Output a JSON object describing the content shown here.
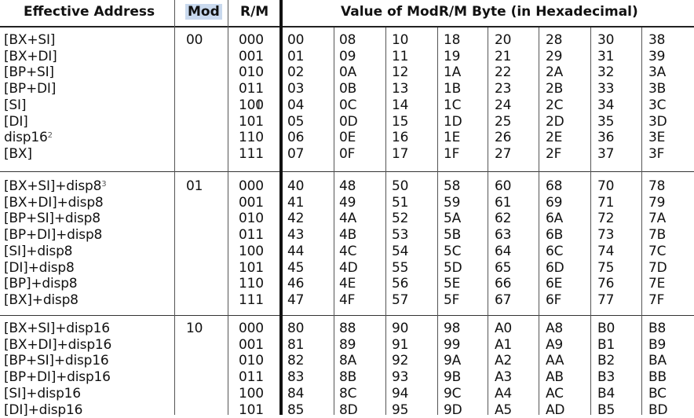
{
  "header": {
    "effective_address": "Effective Address",
    "mod": "Mod",
    "rm": "R/M",
    "value": "Value of ModR/M Byte (in Hexadecimal)"
  },
  "groups": [
    {
      "mod": "00",
      "rows": [
        {
          "ea": "[BX+SI]",
          "sup": "",
          "rm": "000",
          "vals": [
            "00",
            "08",
            "10",
            "18",
            "20",
            "28",
            "30",
            "38"
          ]
        },
        {
          "ea": "[BX+DI]",
          "sup": "",
          "rm": "001",
          "vals": [
            "01",
            "09",
            "11",
            "19",
            "21",
            "29",
            "31",
            "39"
          ]
        },
        {
          "ea": "[BP+SI]",
          "sup": "",
          "rm": "010",
          "vals": [
            "02",
            "0A",
            "12",
            "1A",
            "22",
            "2A",
            "32",
            "3A"
          ]
        },
        {
          "ea": "[BP+DI]",
          "sup": "",
          "rm": "011",
          "vals": [
            "03",
            "0B",
            "13",
            "1B",
            "23",
            "2B",
            "33",
            "3B"
          ]
        },
        {
          "ea": "[SI]",
          "sup": "",
          "rm": "100",
          "vals": [
            "04",
            "0C",
            "14",
            "1C",
            "24",
            "2C",
            "34",
            "3C"
          ]
        },
        {
          "ea": "[DI]",
          "sup": "",
          "rm": "101",
          "vals": [
            "05",
            "0D",
            "15",
            "1D",
            "25",
            "2D",
            "35",
            "3D"
          ]
        },
        {
          "ea": "disp16",
          "sup": "2",
          "rm": "110",
          "vals": [
            "06",
            "0E",
            "16",
            "1E",
            "26",
            "2E",
            "36",
            "3E"
          ]
        },
        {
          "ea": "[BX]",
          "sup": "",
          "rm": "111",
          "vals": [
            "07",
            "0F",
            "17",
            "1F",
            "27",
            "2F",
            "37",
            "3F"
          ]
        }
      ]
    },
    {
      "mod": "01",
      "rows": [
        {
          "ea": "[BX+SI]+disp8",
          "sup": "3",
          "rm": "000",
          "vals": [
            "40",
            "48",
            "50",
            "58",
            "60",
            "68",
            "70",
            "78"
          ]
        },
        {
          "ea": "[BX+DI]+disp8",
          "sup": "",
          "rm": "001",
          "vals": [
            "41",
            "49",
            "51",
            "59",
            "61",
            "69",
            "71",
            "79"
          ]
        },
        {
          "ea": "[BP+SI]+disp8",
          "sup": "",
          "rm": "010",
          "vals": [
            "42",
            "4A",
            "52",
            "5A",
            "62",
            "6A",
            "72",
            "7A"
          ]
        },
        {
          "ea": "[BP+DI]+disp8",
          "sup": "",
          "rm": "011",
          "vals": [
            "43",
            "4B",
            "53",
            "5B",
            "63",
            "6B",
            "73",
            "7B"
          ]
        },
        {
          "ea": "[SI]+disp8",
          "sup": "",
          "rm": "100",
          "vals": [
            "44",
            "4C",
            "54",
            "5C",
            "64",
            "6C",
            "74",
            "7C"
          ]
        },
        {
          "ea": "[DI]+disp8",
          "sup": "",
          "rm": "101",
          "vals": [
            "45",
            "4D",
            "55",
            "5D",
            "65",
            "6D",
            "75",
            "7D"
          ]
        },
        {
          "ea": "[BP]+disp8",
          "sup": "",
          "rm": "110",
          "vals": [
            "46",
            "4E",
            "56",
            "5E",
            "66",
            "6E",
            "76",
            "7E"
          ]
        },
        {
          "ea": "[BX]+disp8",
          "sup": "",
          "rm": "111",
          "vals": [
            "47",
            "4F",
            "57",
            "5F",
            "67",
            "6F",
            "77",
            "7F"
          ]
        }
      ]
    },
    {
      "mod": "10",
      "rows": [
        {
          "ea": "[BX+SI]+disp16",
          "sup": "",
          "rm": "000",
          "vals": [
            "80",
            "88",
            "90",
            "98",
            "A0",
            "A8",
            "B0",
            "B8"
          ]
        },
        {
          "ea": "[BX+DI]+disp16",
          "sup": "",
          "rm": "001",
          "vals": [
            "81",
            "89",
            "91",
            "99",
            "A1",
            "A9",
            "B1",
            "B9"
          ]
        },
        {
          "ea": "[BP+SI]+disp16",
          "sup": "",
          "rm": "010",
          "vals": [
            "82",
            "8A",
            "92",
            "9A",
            "A2",
            "AA",
            "B2",
            "BA"
          ]
        },
        {
          "ea": "[BP+DI]+disp16",
          "sup": "",
          "rm": "011",
          "vals": [
            "83",
            "8B",
            "93",
            "9B",
            "A3",
            "AB",
            "B3",
            "BB"
          ]
        },
        {
          "ea": "[SI]+disp16",
          "sup": "",
          "rm": "100",
          "vals": [
            "84",
            "8C",
            "94",
            "9C",
            "A4",
            "AC",
            "B4",
            "BC"
          ]
        },
        {
          "ea": "[DI]+disp16",
          "sup": "",
          "rm": "101",
          "vals": [
            "85",
            "8D",
            "95",
            "9D",
            "A5",
            "AD",
            "B5",
            "BD"
          ]
        }
      ]
    }
  ],
  "cursor_glyph": "I"
}
